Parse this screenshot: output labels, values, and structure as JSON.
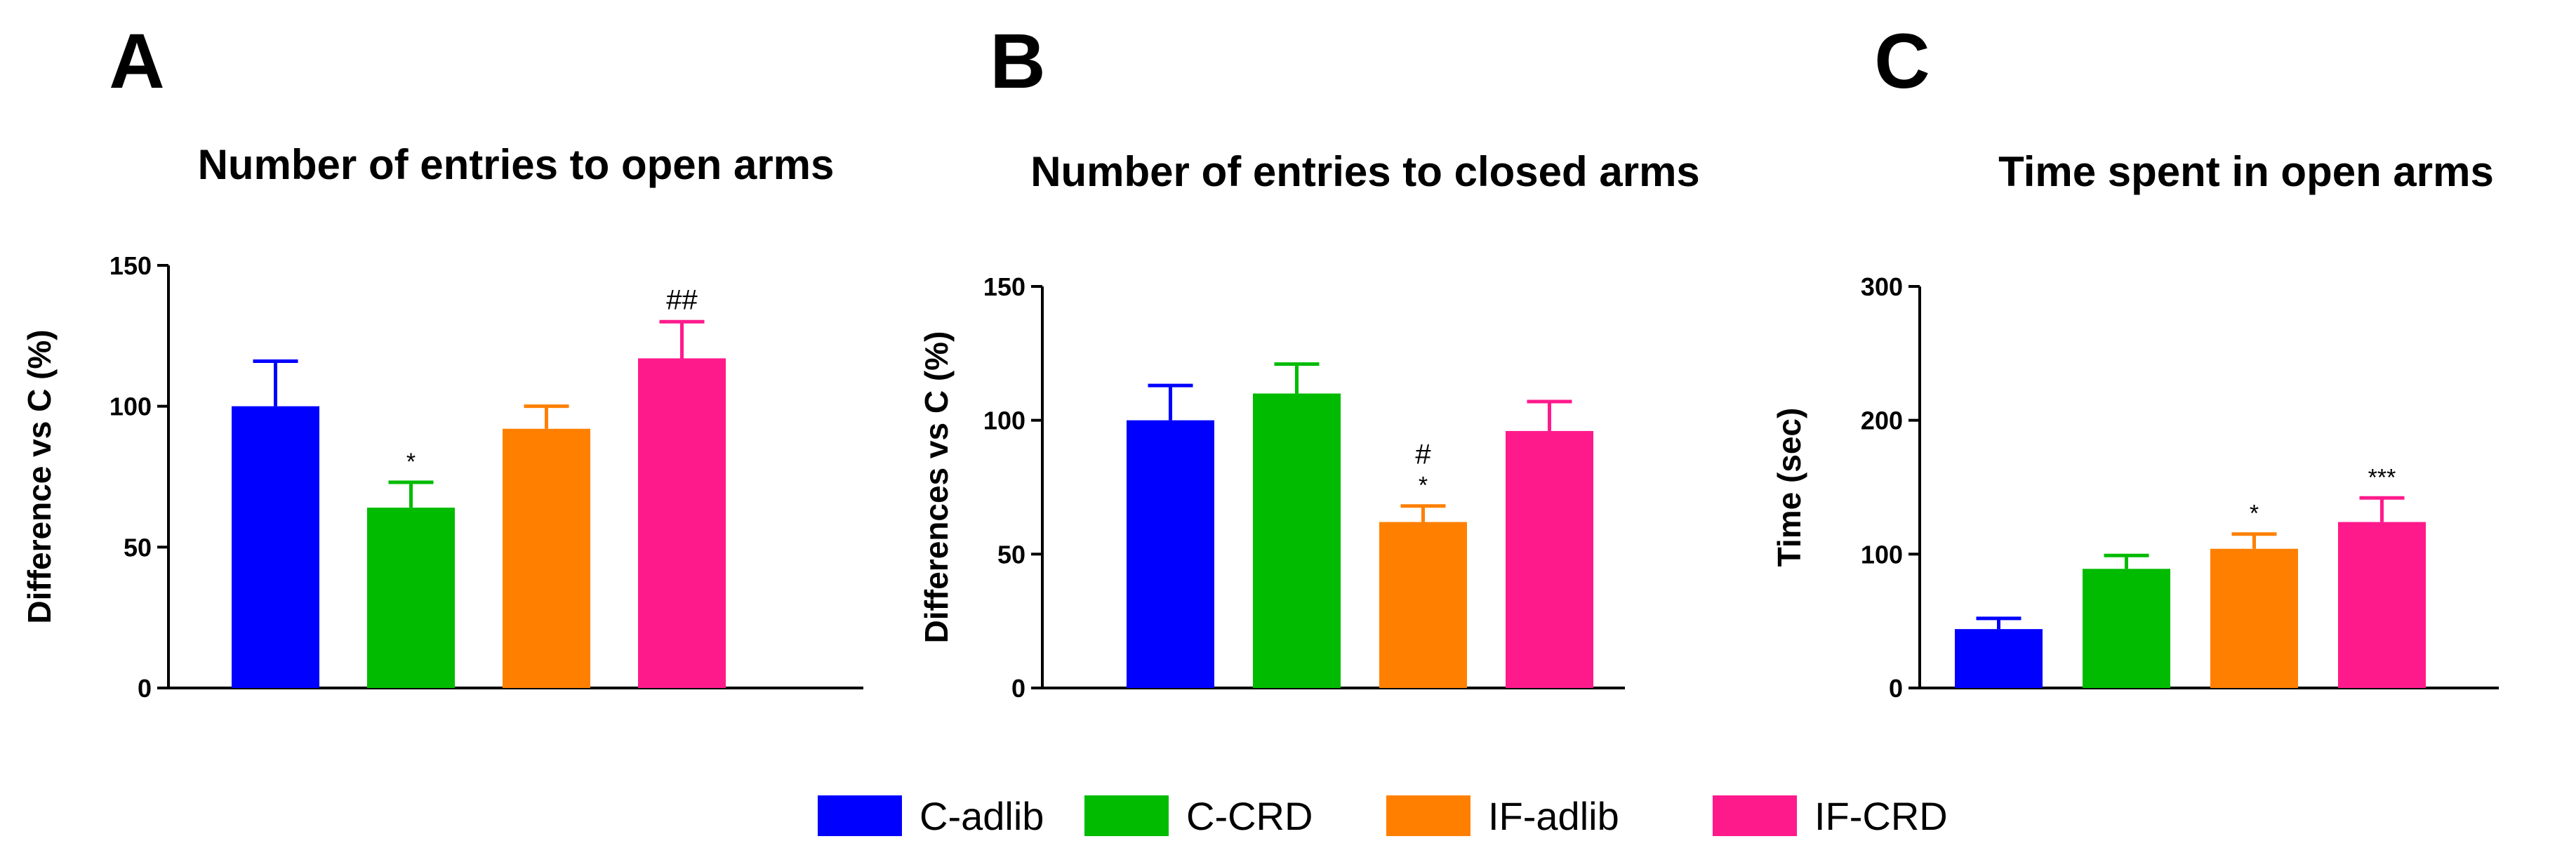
{
  "series_colors": {
    "C-adlib": "#0000FF",
    "C-CRD": "#00BB00",
    "IF-adlib": "#FF8000",
    "IF-CRD": "#FF1A8C"
  },
  "legend": [
    "C-adlib",
    "C-CRD",
    "IF-adlib",
    "IF-CRD"
  ],
  "chart_data": [
    {
      "type": "bar",
      "panel": "A",
      "title": "Number of entries to open arms",
      "xlabel": "",
      "ylabel": "Difference vs C (%)",
      "ylim": [
        0,
        150
      ],
      "yticks": [
        0,
        50,
        100,
        150
      ],
      "categories": [
        "C-adlib",
        "C-CRD",
        "IF-adlib",
        "IF-CRD"
      ],
      "values": [
        100,
        64,
        92,
        117
      ],
      "errors": [
        16,
        9,
        8,
        13
      ],
      "annotations": [
        "",
        "*",
        "",
        "##"
      ]
    },
    {
      "type": "bar",
      "panel": "B",
      "title": "Number of entries to closed arms",
      "xlabel": "",
      "ylabel": "Differences vs C (%)",
      "ylim": [
        0,
        150
      ],
      "yticks": [
        0,
        50,
        100,
        150
      ],
      "categories": [
        "C-adlib",
        "C-CRD",
        "IF-adlib",
        "IF-CRD"
      ],
      "values": [
        100,
        110,
        62,
        96
      ],
      "errors": [
        13,
        11,
        6,
        11
      ],
      "annotations": [
        "",
        "",
        "#\n*",
        ""
      ]
    },
    {
      "type": "bar",
      "panel": "C",
      "title": "Time spent in open arms",
      "xlabel": "",
      "ylabel": "Time (sec)",
      "ylim": [
        0,
        300
      ],
      "yticks": [
        0,
        100,
        200,
        300
      ],
      "categories": [
        "C-adlib",
        "C-CRD",
        "IF-adlib",
        "IF-CRD"
      ],
      "values": [
        44,
        89,
        104,
        124
      ],
      "errors": [
        8,
        10,
        11,
        18
      ],
      "annotations": [
        "",
        "",
        "*",
        "***"
      ]
    }
  ]
}
